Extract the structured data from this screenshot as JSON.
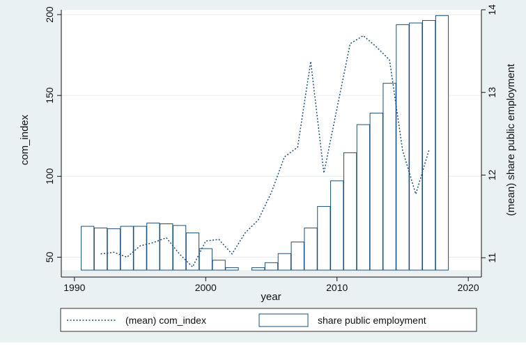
{
  "chart_data": {
    "type": "bar",
    "title": "",
    "xlabel": "year",
    "ylabel_left": "com_index",
    "ylabel_right": "(mean) share public employment",
    "xlim": [
      1989,
      2021
    ],
    "xticks": [
      1990,
      2000,
      2010,
      2020
    ],
    "ylim_left": [
      42,
      203
    ],
    "yticks_left": [
      50,
      100,
      150,
      200
    ],
    "ylim_right": [
      10.85,
      14.0
    ],
    "yticks_right": [
      11,
      12,
      13,
      14
    ],
    "bar_baseline": 10.85,
    "grid": "horizontal",
    "legend_placement": "bottom",
    "series": [
      {
        "name": "(mean) com_index",
        "type": "line",
        "style": "dotted",
        "axis": "left",
        "x": [
          1992,
          1993,
          1994,
          1995,
          1996,
          1997,
          1998,
          1999,
          2000,
          2001,
          2002,
          2003,
          2004,
          2005,
          2006,
          2007,
          2008,
          2009,
          2010,
          2011,
          2012,
          2013,
          2014,
          2015,
          2016,
          2017
        ],
        "y": [
          52,
          53,
          50,
          57,
          59,
          62,
          52,
          44,
          60,
          61,
          52,
          65,
          73,
          90,
          112,
          118,
          171,
          102,
          142,
          182,
          187,
          180,
          172,
          116,
          89,
          116
        ]
      },
      {
        "name": "share public employment",
        "type": "bar",
        "axis": "right",
        "x": [
          1991,
          1992,
          1993,
          1994,
          1995,
          1996,
          1997,
          1998,
          1999,
          2000,
          2001,
          2002,
          2004,
          2005,
          2006,
          2007,
          2008,
          2009,
          2010,
          2011,
          2012,
          2013,
          2014,
          2015,
          2016,
          2017,
          2018
        ],
        "y": [
          11.38,
          11.36,
          11.35,
          11.38,
          11.38,
          11.42,
          11.41,
          11.39,
          11.3,
          11.11,
          10.97,
          10.88,
          10.88,
          10.94,
          11.05,
          11.19,
          11.36,
          11.62,
          11.93,
          12.27,
          12.61,
          12.75,
          13.11,
          13.82,
          13.84,
          13.87,
          13.93
        ]
      }
    ],
    "legend": {
      "line_label": "(mean) com_index",
      "bar_label": "share public employment"
    }
  }
}
